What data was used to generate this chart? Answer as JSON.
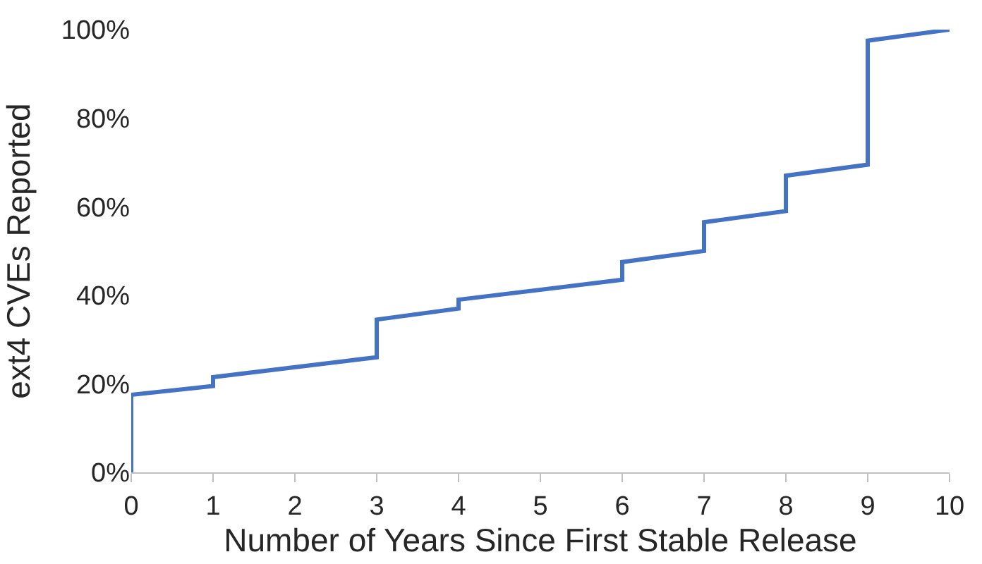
{
  "chart_data": {
    "type": "line",
    "xlabel": "Number of Years Since First Stable Release",
    "ylabel": "ext4 CVEs Reported",
    "x": [
      0,
      0,
      1,
      1,
      3,
      3,
      4,
      4,
      6,
      6,
      7,
      7,
      8,
      8,
      9,
      9,
      10
    ],
    "series": [
      {
        "color": "#4472c4",
        "values": [
          0,
          17.5,
          19.5,
          21.5,
          26,
          34.5,
          37,
          39,
          43.5,
          47.5,
          50,
          56.5,
          59,
          67,
          69.5,
          97.5,
          100
        ]
      }
    ],
    "xlim": [
      0,
      10
    ],
    "xticks": [
      0,
      1,
      2,
      3,
      4,
      5,
      6,
      7,
      8,
      9,
      10
    ],
    "ylim": [
      0,
      100
    ],
    "yticks": [
      {
        "value": 0,
        "label": "0%"
      },
      {
        "value": 20,
        "label": "20%"
      },
      {
        "value": 40,
        "label": "40%"
      },
      {
        "value": 60,
        "label": "60%"
      },
      {
        "value": 80,
        "label": "80%"
      },
      {
        "value": 100,
        "label": "100%"
      }
    ],
    "marker": "none",
    "line_style": "solid"
  }
}
